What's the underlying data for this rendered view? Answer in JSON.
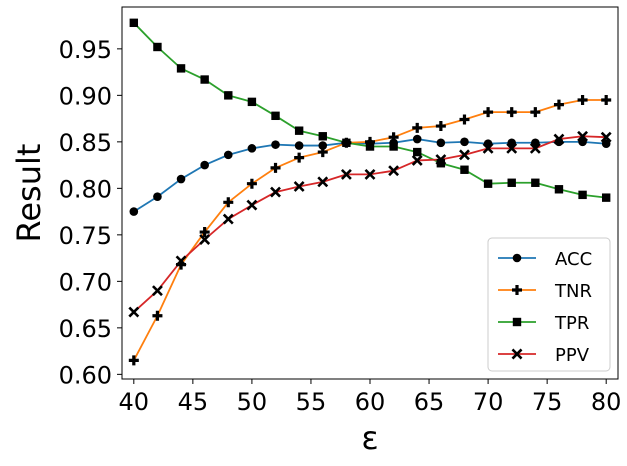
{
  "chart_data": {
    "type": "line",
    "xlabel": "ε",
    "ylabel": "Result",
    "xlim": [
      39,
      81
    ],
    "ylim": [
      0.595,
      0.995
    ],
    "xticks": [
      40,
      45,
      50,
      55,
      60,
      65,
      70,
      75,
      80
    ],
    "yticks": [
      0.6,
      0.65,
      0.7,
      0.75,
      0.8,
      0.85,
      0.9,
      0.95
    ],
    "ytick_labels": [
      "0.60",
      "0.65",
      "0.70",
      "0.75",
      "0.80",
      "0.85",
      "0.90",
      "0.95"
    ],
    "legend_position": "bottom-right",
    "x": [
      40,
      42,
      44,
      46,
      48,
      50,
      52,
      54,
      56,
      58,
      60,
      62,
      64,
      66,
      68,
      70,
      72,
      74,
      76,
      78,
      80
    ],
    "series": [
      {
        "name": "ACC",
        "color": "#1f77b4",
        "marker": "circle",
        "values": [
          0.775,
          0.791,
          0.81,
          0.825,
          0.836,
          0.843,
          0.847,
          0.846,
          0.846,
          0.849,
          0.848,
          0.849,
          0.853,
          0.849,
          0.85,
          0.848,
          0.849,
          0.849,
          0.85,
          0.85,
          0.848
        ]
      },
      {
        "name": "TNR",
        "color": "#ff7f0e",
        "marker": "plus",
        "values": [
          0.615,
          0.663,
          0.718,
          0.753,
          0.785,
          0.805,
          0.822,
          0.833,
          0.839,
          0.849,
          0.85,
          0.855,
          0.865,
          0.867,
          0.874,
          0.882,
          0.882,
          0.882,
          0.89,
          0.895,
          0.895
        ]
      },
      {
        "name": "TPR",
        "color": "#2ca02c",
        "marker": "square",
        "values": [
          0.978,
          0.952,
          0.929,
          0.917,
          0.9,
          0.893,
          0.878,
          0.862,
          0.856,
          0.849,
          0.845,
          0.845,
          0.839,
          0.827,
          0.82,
          0.805,
          0.806,
          0.806,
          0.799,
          0.793,
          0.79
        ]
      },
      {
        "name": "PPV",
        "color": "#d62728",
        "marker": "x",
        "values": [
          0.667,
          0.69,
          0.722,
          0.745,
          0.767,
          0.782,
          0.796,
          0.802,
          0.807,
          0.815,
          0.815,
          0.819,
          0.83,
          0.831,
          0.836,
          0.843,
          0.843,
          0.843,
          0.853,
          0.856,
          0.855
        ]
      }
    ]
  }
}
